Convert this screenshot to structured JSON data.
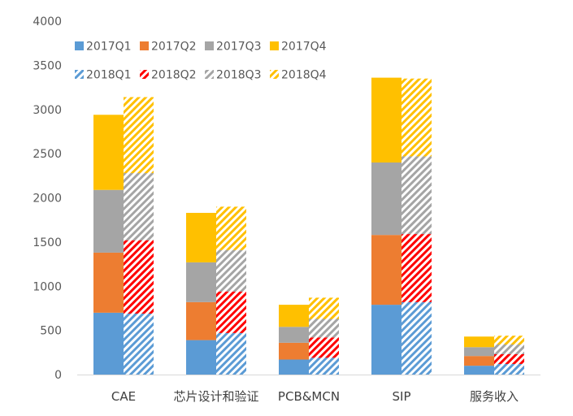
{
  "chart_data": {
    "type": "bar",
    "stacked": true,
    "title": "",
    "xlabel": "",
    "ylabel": "",
    "ylim": [
      0,
      4000
    ],
    "yticks": [
      0,
      500,
      1000,
      1500,
      2000,
      2500,
      3000,
      3500,
      4000
    ],
    "grid": false,
    "legend_position": "top-left",
    "categories": [
      "CAE",
      "芯片设计和验证",
      "PCB&MCN",
      "SIP",
      "服务收入"
    ],
    "groups": [
      {
        "name": "2017",
        "pattern": "solid",
        "series": [
          {
            "name": "2017Q1",
            "color": "#5B9BD5",
            "values": [
              700,
              390,
              170,
              790,
              100
            ]
          },
          {
            "name": "2017Q2",
            "color": "#ED7D31",
            "values": [
              680,
              430,
              190,
              790,
              110
            ]
          },
          {
            "name": "2017Q3",
            "color": "#A5A5A5",
            "values": [
              710,
              450,
              180,
              820,
              100
            ]
          },
          {
            "name": "2017Q4",
            "color": "#FFC000",
            "values": [
              850,
              560,
              250,
              960,
              120
            ]
          }
        ]
      },
      {
        "name": "2018",
        "pattern": "hatched",
        "series": [
          {
            "name": "2018Q1",
            "color": "#5B9BD5",
            "values": [
              690,
              470,
              190,
              820,
              120
            ]
          },
          {
            "name": "2018Q2",
            "color": "#FF0000",
            "values": [
              830,
              470,
              230,
              770,
              110
            ]
          },
          {
            "name": "2018Q3",
            "color": "#A5A5A5",
            "values": [
              760,
              470,
              210,
              880,
              110
            ]
          },
          {
            "name": "2018Q4",
            "color": "#FFC000",
            "values": [
              860,
              490,
              240,
              880,
              100
            ]
          }
        ]
      }
    ]
  }
}
